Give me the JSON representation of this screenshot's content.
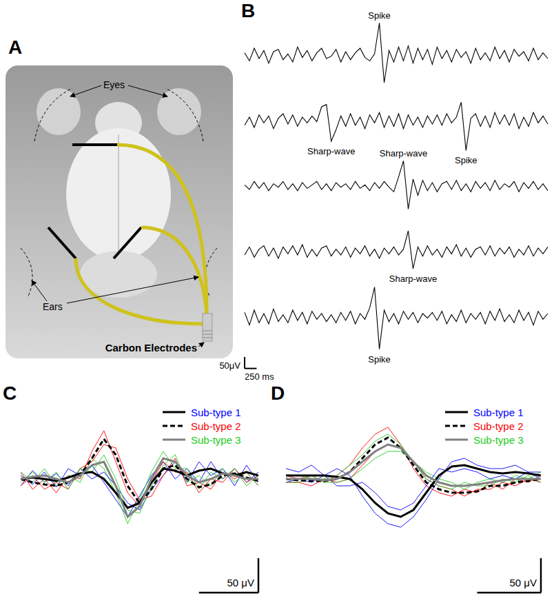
{
  "diagram": {
    "panel": "A",
    "eyes": "Eyes",
    "ears": "Ears",
    "electrodes": "Carbon Electrodes"
  },
  "chart_data": [
    {
      "panel": "B",
      "type": "line",
      "tick_labels": false,
      "x": [
        0,
        100,
        200,
        300,
        400,
        500,
        600,
        700,
        800,
        900,
        1000,
        1100,
        1200,
        1300,
        1400,
        1500,
        1600,
        1700,
        1800,
        1900,
        2000,
        2100,
        2200,
        2300,
        2400,
        2500,
        2600,
        2700,
        2800,
        2900,
        3000,
        3100,
        3200,
        3300,
        3400,
        3500,
        3600,
        3700,
        3800,
        3900,
        4000,
        4100,
        4200,
        4300,
        4400,
        4500,
        4600,
        4700,
        4800,
        4900,
        5000,
        5100,
        5200,
        5300,
        5400,
        5500,
        5600,
        5700,
        5800,
        5900,
        6000,
        6100,
        6200,
        6300
      ],
      "xlim": [
        0,
        6300
      ],
      "ylim": [
        -150,
        150
      ],
      "series": [
        {
          "color": "#000000",
          "values": [
            10,
            -25,
            30,
            -15,
            20,
            -35,
            15,
            25,
            -20,
            5,
            -30,
            35,
            -10,
            20,
            -25,
            10,
            30,
            -15,
            -5,
            25,
            -30,
            15,
            -20,
            10,
            30,
            -10,
            -25,
            5,
            140,
            -120,
            20,
            -30,
            35,
            -25,
            40,
            -35,
            30,
            -20,
            25,
            -40,
            35,
            -15,
            20,
            -30,
            25,
            -10,
            15,
            -35,
            30,
            -20,
            10,
            -25,
            35,
            -15,
            20,
            -30,
            25,
            -5,
            15,
            -25,
            30,
            -20,
            10,
            -15
          ],
          "annotations": [
            {
              "text": "Spike",
              "x": 2800,
              "y": 140
            }
          ]
        },
        {
          "color": "#000000",
          "values": [
            -20,
            15,
            -30,
            25,
            -10,
            20,
            -35,
            10,
            30,
            -15,
            25,
            -25,
            15,
            -10,
            20,
            -5,
            60,
            70,
            -90,
            -40,
            20,
            -25,
            30,
            -20,
            15,
            -35,
            25,
            -10,
            35,
            -30,
            20,
            -25,
            30,
            -35,
            25,
            -20,
            15,
            -30,
            20,
            -15,
            25,
            -20,
            30,
            -10,
            15,
            80,
            -130,
            10,
            30,
            -25,
            20,
            -30,
            35,
            -15,
            25,
            -20,
            30,
            -35,
            15,
            -25,
            35,
            -10,
            20,
            -15
          ],
          "annotations": [
            {
              "text": "Sharp-wave",
              "x": 1800,
              "y": -90
            },
            {
              "text": "Spike",
              "x": 4600,
              "y": -130
            }
          ]
        },
        {
          "color": "#000000",
          "values": [
            5,
            -15,
            20,
            -10,
            15,
            -20,
            10,
            -5,
            20,
            -15,
            10,
            -20,
            15,
            -10,
            5,
            20,
            -15,
            10,
            -20,
            15,
            -5,
            10,
            -15,
            20,
            -10,
            5,
            -20,
            15,
            -10,
            20,
            -5,
            -25,
            40,
            110,
            -100,
            30,
            -40,
            25,
            -20,
            15,
            -25,
            10,
            20,
            -15,
            25,
            -20,
            10,
            -25,
            20,
            -10,
            15,
            -20,
            25,
            -15,
            10,
            -5,
            20,
            -25,
            15,
            -10,
            20,
            -15,
            10,
            -20
          ],
          "annotations": [
            {
              "text": "Sharp-wave",
              "x": 3300,
              "y": 110
            }
          ]
        },
        {
          "color": "#000000",
          "values": [
            -15,
            20,
            -25,
            10,
            25,
            -20,
            15,
            -30,
            20,
            -10,
            25,
            -15,
            30,
            -25,
            10,
            -20,
            15,
            25,
            -20,
            10,
            -15,
            20,
            -25,
            15,
            -10,
            25,
            -20,
            10,
            -30,
            15,
            -10,
            20,
            -15,
            10,
            90,
            -75,
            20,
            -20,
            25,
            -15,
            10,
            -25,
            20,
            -10,
            30,
            -20,
            15,
            -25,
            10,
            20,
            -15,
            25,
            -20,
            15,
            -10,
            20,
            -25,
            10,
            -15,
            25,
            -20,
            15,
            -10,
            20
          ],
          "annotations": [
            {
              "text": "Sharp-wave",
              "x": 3500,
              "y": -75
            }
          ]
        },
        {
          "color": "#000000",
          "values": [
            20,
            -35,
            30,
            -25,
            15,
            -30,
            35,
            -20,
            10,
            -25,
            30,
            -15,
            20,
            -30,
            25,
            -10,
            15,
            -20,
            10,
            -25,
            20,
            -15,
            25,
            -30,
            15,
            -10,
            40,
            130,
            -140,
            30,
            -20,
            15,
            -30,
            25,
            -10,
            20,
            -25,
            15,
            -5,
            20,
            -15,
            25,
            -30,
            10,
            -20,
            30,
            -25,
            15,
            -10,
            20,
            -30,
            25,
            -15,
            35,
            -20,
            10,
            -25,
            30,
            -15,
            20,
            -35,
            25,
            -10,
            15
          ],
          "annotations": [
            {
              "text": "Spike",
              "x": 2800,
              "y": -140
            }
          ]
        }
      ],
      "scale_bar": {
        "x": 250,
        "x_label": "250 ms",
        "y": 50,
        "y_label": "50μV"
      }
    },
    {
      "panel": "C",
      "type": "line",
      "tick_labels": false,
      "legend": "upper right",
      "x": [
        0,
        2,
        4,
        6,
        8,
        10,
        12,
        14,
        16,
        18,
        20,
        22,
        24,
        26,
        28,
        30,
        32,
        34,
        36,
        38,
        40
      ],
      "xlim": [
        0,
        40
      ],
      "ylim": [
        -110,
        110
      ],
      "series": [
        {
          "name": "Sub-type 1",
          "color": "#000000",
          "line_style": "solid",
          "values": [
            0,
            2,
            0,
            -3,
            2,
            8,
            10,
            0,
            -20,
            -42,
            -35,
            -5,
            15,
            12,
            5,
            12,
            15,
            8,
            5,
            10,
            5
          ],
          "traces": [
            {
              "color": "#0000ff",
              "values": [
                5,
                -8,
                10,
                -12,
                15,
                5,
                20,
                -5,
                -30,
                -55,
                -25,
                5,
                25,
                0,
                15,
                -5,
                25,
                0,
                15,
                -5,
                10
              ]
            },
            {
              "color": "#0000ff",
              "values": [
                -10,
                12,
                -5,
                8,
                -10,
                15,
                0,
                10,
                -10,
                -35,
                -45,
                -15,
                5,
                25,
                -5,
                25,
                5,
                15,
                -10,
                20,
                -5
              ]
            }
          ]
        },
        {
          "name": "Sub-type 2",
          "color": "#000000",
          "line_style": "dashed",
          "values": [
            0,
            -5,
            -8,
            -10,
            -5,
            5,
            30,
            58,
            35,
            -10,
            -35,
            -15,
            15,
            20,
            0,
            -12,
            -8,
            5,
            8,
            2,
            -3
          ],
          "traces": [
            {
              "color": "#ff0000",
              "values": [
                10,
                -15,
                0,
                -20,
                5,
                0,
                40,
                70,
                25,
                -20,
                -40,
                -5,
                25,
                10,
                10,
                -20,
                0,
                -5,
                15,
                -5,
                5
              ]
            },
            {
              "color": "#ff0000",
              "values": [
                -10,
                5,
                -15,
                -5,
                -15,
                15,
                25,
                50,
                45,
                0,
                -30,
                -25,
                5,
                30,
                -10,
                -5,
                -15,
                10,
                0,
                10,
                -10
              ]
            }
          ]
        },
        {
          "name": "Sub-type 3",
          "color": "#808080",
          "line_style": "solid",
          "values": [
            0,
            3,
            5,
            0,
            -5,
            5,
            20,
            25,
            -10,
            -55,
            -40,
            0,
            30,
            25,
            5,
            -5,
            0,
            8,
            5,
            0,
            0
          ],
          "traces": [
            {
              "color": "#22cc22",
              "values": [
                10,
                -5,
                15,
                -10,
                5,
                -5,
                30,
                15,
                -20,
                -65,
                -30,
                10,
                40,
                15,
                15,
                -15,
                10,
                0,
                15,
                -10,
                5
              ]
            },
            {
              "color": "#22cc22",
              "values": [
                -5,
                10,
                -5,
                10,
                -15,
                15,
                10,
                35,
                0,
                -45,
                -50,
                -10,
                20,
                35,
                -5,
                5,
                -10,
                15,
                -5,
                10,
                -10
              ]
            }
          ]
        }
      ],
      "scale_bar": {
        "x": 10,
        "y": 50,
        "y_label": "50 μV"
      }
    },
    {
      "panel": "D",
      "type": "line",
      "tick_labels": false,
      "legend": "upper right",
      "x": [
        0,
        2,
        4,
        6,
        8,
        10,
        12,
        14,
        16,
        18,
        20,
        22,
        24,
        26,
        28,
        30,
        32,
        34,
        36,
        38,
        40
      ],
      "xlim": [
        0,
        40
      ],
      "ylim": [
        -110,
        110
      ],
      "series": [
        {
          "name": "Sub-type 1",
          "color": "#000000",
          "line_style": "solid",
          "values": [
            5,
            5,
            5,
            5,
            3,
            0,
            -15,
            -35,
            -50,
            -55,
            -45,
            -20,
            5,
            18,
            20,
            15,
            10,
            8,
            10,
            8,
            5
          ],
          "traces": [
            {
              "color": "#0000ff",
              "values": [
                15,
                10,
                20,
                5,
                15,
                5,
                -25,
                -50,
                -65,
                -70,
                -55,
                -30,
                0,
                25,
                30,
                20,
                15,
                15,
                20,
                10,
                10
              ]
            },
            {
              "color": "#0000ff",
              "values": [
                -5,
                0,
                -5,
                5,
                -10,
                -10,
                -5,
                -20,
                -40,
                -45,
                -35,
                -10,
                15,
                10,
                15,
                10,
                0,
                5,
                0,
                10,
                0
              ]
            }
          ]
        },
        {
          "name": "Sub-type 2",
          "color": "#000000",
          "line_style": "dashed",
          "values": [
            0,
            -2,
            -3,
            -3,
            0,
            10,
            30,
            50,
            60,
            45,
            20,
            -5,
            -15,
            -20,
            -20,
            -18,
            -10,
            -10,
            -5,
            -3,
            0
          ],
          "traces": [
            {
              "color": "#ff0000",
              "values": [
                5,
                0,
                5,
                -5,
                5,
                20,
                45,
                65,
                75,
                50,
                15,
                -10,
                -20,
                -25,
                -15,
                -20,
                -5,
                -15,
                0,
                -5,
                5
              ]
            },
            {
              "color": "#ff0000",
              "values": [
                -5,
                -5,
                -10,
                0,
                -5,
                0,
                20,
                40,
                50,
                45,
                25,
                0,
                -10,
                -15,
                -25,
                -15,
                -15,
                -5,
                -10,
                0,
                -5
              ]
            }
          ]
        },
        {
          "name": "Sub-type 3",
          "color": "#808080",
          "line_style": "solid",
          "values": [
            0,
            0,
            0,
            -2,
            0,
            10,
            25,
            40,
            50,
            45,
            25,
            5,
            -5,
            -10,
            -10,
            -8,
            -5,
            -2,
            0,
            0,
            0
          ],
          "traces": [
            {
              "color": "#22cc22",
              "values": [
                5,
                5,
                0,
                0,
                5,
                20,
                35,
                55,
                65,
                50,
                25,
                10,
                0,
                -5,
                -15,
                -5,
                0,
                -5,
                5,
                0,
                10
              ]
            },
            {
              "color": "#22cc22",
              "values": [
                -5,
                -5,
                5,
                -5,
                -5,
                0,
                15,
                30,
                40,
                40,
                25,
                0,
                -10,
                -15,
                -5,
                -10,
                -10,
                0,
                -5,
                5,
                -5
              ]
            }
          ]
        }
      ],
      "scale_bar": {
        "x": 10,
        "y": 50,
        "y_label": "50 μV"
      }
    }
  ]
}
